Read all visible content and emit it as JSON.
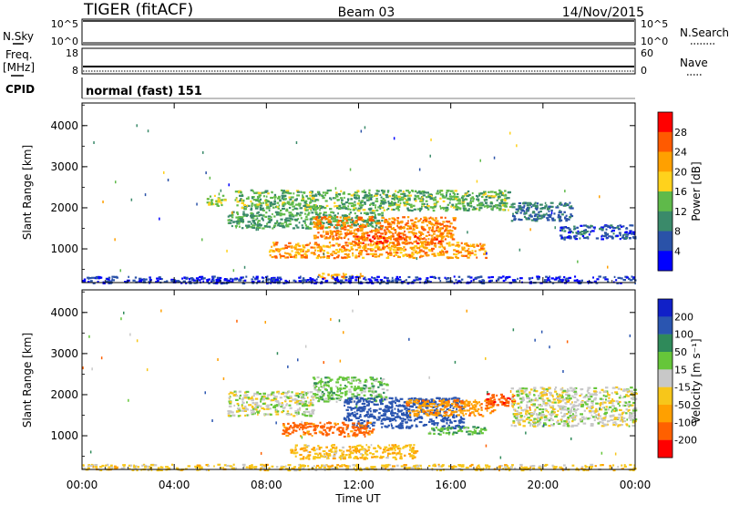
{
  "header": {
    "station": "TIGER (fitACF)",
    "beam": "Beam 03",
    "date": "14/Nov/2015"
  },
  "noise_panel": {
    "left_label": "N.Sky",
    "right_label": "N.Search",
    "left_ticks": [
      "10^5",
      "10^0"
    ],
    "right_ticks": [
      "10^5",
      "10^0"
    ]
  },
  "freq_panel": {
    "left_label_line1": "Freq.",
    "left_label_line2": "[MHz]",
    "right_label": "Nave",
    "left_ticks": [
      "18",
      "8"
    ],
    "right_ticks": [
      "60",
      "0"
    ]
  },
  "cpid_panel": {
    "label": "CPID",
    "text": "normal (fast) 151"
  },
  "colors": {
    "power_scale": [
      "#0000ff",
      "#2a52a8",
      "#3a8a6a",
      "#5fba4a",
      "#ffd21c",
      "#ffa000",
      "#ff5a00",
      "#ff0000"
    ],
    "velocity_scale": [
      "#1020c8",
      "#2a55b0",
      "#2f8a5a",
      "#66c63a",
      "#c8c8c8",
      "#f7c61a",
      "#ffa000",
      "#ff6000",
      "#ff0000"
    ],
    "ground_scatter": "#b4b4b4"
  },
  "chart_data": [
    {
      "type": "heatmap",
      "name": "power",
      "ylabel": "Slant Range [km]",
      "yticks": [
        "1000",
        "2000",
        "3000",
        "4000"
      ],
      "ylim": [
        180,
        4550
      ],
      "xlim": [
        0,
        24
      ],
      "xtick_labels": [
        "00:00",
        "04:00",
        "08:00",
        "12:00",
        "16:00",
        "20:00",
        "00:00"
      ],
      "colorbar": {
        "label": "Power [dB]",
        "ticks": [
          "4",
          "8",
          "12",
          "16",
          "20",
          "24",
          "28"
        ],
        "range": [
          0,
          32
        ]
      },
      "regions": [
        {
          "t0": 6.6,
          "t1": 18.6,
          "r0": 1950,
          "r1": 2450,
          "value": 13
        },
        {
          "t0": 6.3,
          "t1": 13.0,
          "r0": 1520,
          "r1": 1920,
          "value": 12
        },
        {
          "t0": 10.0,
          "t1": 16.2,
          "r0": 1250,
          "r1": 1800,
          "value": 24
        },
        {
          "t0": 8.1,
          "t1": 17.5,
          "r0": 800,
          "r1": 1180,
          "value": 22
        },
        {
          "t0": 11.7,
          "t1": 15.6,
          "r0": 1150,
          "r1": 1350,
          "value": 26
        },
        {
          "t0": 10.2,
          "t1": 12.1,
          "r0": 300,
          "r1": 420,
          "value": 21
        },
        {
          "t0": 18.6,
          "t1": 21.2,
          "r0": 1700,
          "r1": 2150,
          "value": 8
        },
        {
          "t0": 20.7,
          "t1": 24.0,
          "r0": 1250,
          "r1": 1600,
          "value": 6
        },
        {
          "t0": 5.4,
          "t1": 6.2,
          "r0": 2050,
          "r1": 2350,
          "value": 16
        },
        {
          "t0": 0.0,
          "t1": 24.0,
          "r0": 180,
          "r1": 350,
          "value": 4
        }
      ]
    },
    {
      "type": "heatmap",
      "name": "velocity",
      "ylabel": "Slant Range [km]",
      "yticks": [
        "1000",
        "2000",
        "3000",
        "4000"
      ],
      "ylim": [
        180,
        4550
      ],
      "xlim": [
        0,
        24
      ],
      "xtick_labels": [
        "00:00",
        "04:00",
        "08:00",
        "12:00",
        "16:00",
        "20:00",
        "00:00"
      ],
      "xlabel": "Time UT",
      "colorbar": {
        "label": "Velocity [m s⁻¹]",
        "ticks": [
          "200",
          "100",
          "50",
          "15",
          "-15",
          "-50",
          "-100",
          "-200"
        ]
      },
      "regions": [
        {
          "t0": 6.3,
          "t1": 10.0,
          "r0": 1500,
          "r1": 2100,
          "value": 0
        },
        {
          "t0": 10.0,
          "t1": 13.2,
          "r0": 1850,
          "r1": 2450,
          "value": 30
        },
        {
          "t0": 11.3,
          "t1": 16.5,
          "r0": 1200,
          "r1": 1950,
          "value": 150
        },
        {
          "t0": 14.0,
          "t1": 17.9,
          "r0": 1500,
          "r1": 1900,
          "value": -80
        },
        {
          "t0": 8.6,
          "t1": 12.6,
          "r0": 1000,
          "r1": 1350,
          "value": -120
        },
        {
          "t0": 15.0,
          "t1": 17.5,
          "r0": 1050,
          "r1": 1250,
          "value": 40
        },
        {
          "t0": 17.5,
          "t1": 18.7,
          "r0": 1700,
          "r1": 2050,
          "value": -180
        },
        {
          "t0": 18.6,
          "t1": 24.0,
          "r0": 1250,
          "r1": 2200,
          "value": 0
        },
        {
          "t0": 9.0,
          "t1": 14.5,
          "r0": 450,
          "r1": 800,
          "value": -40
        },
        {
          "t0": 0.0,
          "t1": 24.0,
          "r0": 180,
          "r1": 320,
          "value": -30
        }
      ]
    }
  ]
}
